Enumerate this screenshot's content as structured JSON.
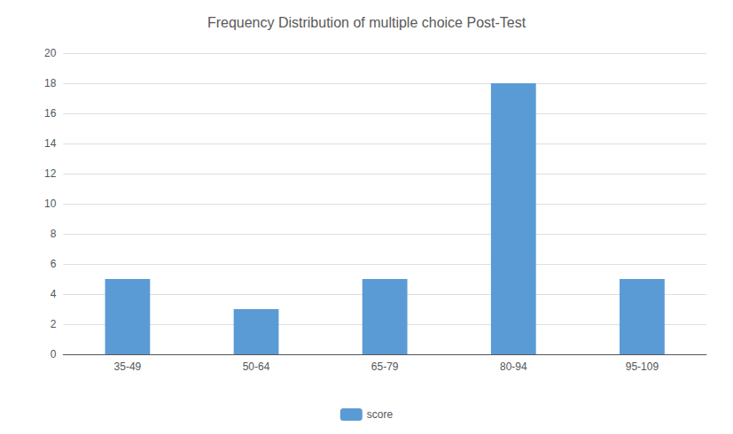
{
  "chart_data": {
    "type": "bar",
    "title": "Frequency Distribution of multiple choice Post-Test",
    "categories": [
      "35-49",
      "50-64",
      "65-79",
      "80-94",
      "95-109"
    ],
    "series": [
      {
        "name": "score",
        "color": "#5b9bd5",
        "values": [
          5,
          3,
          5,
          18,
          5
        ]
      }
    ],
    "ylim": [
      0,
      20
    ],
    "yticks": [
      0,
      2,
      4,
      6,
      8,
      10,
      12,
      14,
      16,
      18,
      20
    ],
    "grid": true,
    "legend": "bottom"
  }
}
